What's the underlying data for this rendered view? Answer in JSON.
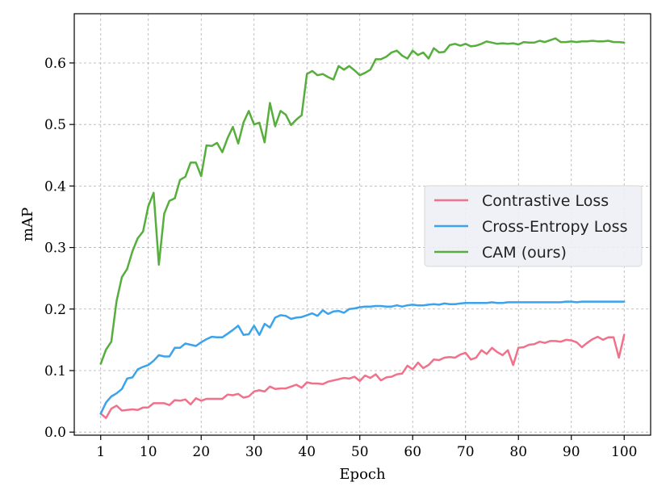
{
  "chart_data": {
    "type": "line",
    "xlabel": "Epoch",
    "ylabel": "mAP",
    "xlim": [
      -4,
      105
    ],
    "ylim": [
      -0.005,
      0.68
    ],
    "xticks": [
      1,
      10,
      20,
      30,
      40,
      50,
      60,
      70,
      80,
      90,
      100
    ],
    "yticks": [
      0.0,
      0.1,
      0.2,
      0.3,
      0.4,
      0.5,
      0.6
    ],
    "ytick_labels": [
      "0.0",
      "0.1",
      "0.2",
      "0.3",
      "0.4",
      "0.5",
      "0.6"
    ],
    "grid": true,
    "legend_position": "center-right",
    "series": [
      {
        "name": "Contrastive Loss",
        "color": "#f07189",
        "x": [
          1,
          2,
          3,
          4,
          5,
          6,
          7,
          8,
          9,
          10,
          11,
          12,
          13,
          14,
          15,
          16,
          17,
          18,
          19,
          20,
          21,
          22,
          23,
          24,
          25,
          26,
          27,
          28,
          29,
          30,
          31,
          32,
          33,
          34,
          35,
          36,
          37,
          38,
          39,
          40,
          41,
          42,
          43,
          44,
          45,
          46,
          47,
          48,
          49,
          50,
          51,
          52,
          53,
          54,
          55,
          56,
          57,
          58,
          59,
          60,
          61,
          62,
          63,
          64,
          65,
          66,
          67,
          68,
          69,
          70,
          71,
          72,
          73,
          74,
          75,
          76,
          77,
          78,
          79,
          80,
          81,
          82,
          83,
          84,
          85,
          86,
          87,
          88,
          89,
          90,
          91,
          92,
          93,
          94,
          95,
          96,
          97,
          98,
          99,
          100
        ],
        "values": [
          0.03,
          0.023,
          0.038,
          0.043,
          0.035,
          0.036,
          0.037,
          0.036,
          0.04,
          0.04,
          0.047,
          0.047,
          0.047,
          0.044,
          0.052,
          0.051,
          0.053,
          0.045,
          0.055,
          0.051,
          0.054,
          0.054,
          0.054,
          0.054,
          0.061,
          0.06,
          0.062,
          0.056,
          0.058,
          0.066,
          0.068,
          0.066,
          0.074,
          0.07,
          0.071,
          0.071,
          0.074,
          0.077,
          0.072,
          0.081,
          0.079,
          0.079,
          0.078,
          0.082,
          0.084,
          0.086,
          0.088,
          0.087,
          0.09,
          0.083,
          0.092,
          0.088,
          0.094,
          0.084,
          0.089,
          0.09,
          0.094,
          0.095,
          0.108,
          0.102,
          0.113,
          0.104,
          0.109,
          0.118,
          0.117,
          0.121,
          0.122,
          0.121,
          0.126,
          0.129,
          0.118,
          0.121,
          0.133,
          0.127,
          0.137,
          0.13,
          0.125,
          0.133,
          0.109,
          0.137,
          0.138,
          0.142,
          0.143,
          0.147,
          0.145,
          0.148,
          0.148,
          0.147,
          0.15,
          0.149,
          0.146,
          0.138,
          0.145,
          0.151,
          0.155,
          0.15,
          0.154,
          0.154,
          0.121,
          0.158
        ]
      },
      {
        "name": "Cross-Entropy Loss",
        "color": "#3ba3ec",
        "x": [
          1,
          2,
          3,
          4,
          5,
          6,
          7,
          8,
          9,
          10,
          11,
          12,
          13,
          14,
          15,
          16,
          17,
          18,
          19,
          20,
          21,
          22,
          23,
          24,
          25,
          26,
          27,
          28,
          29,
          30,
          31,
          32,
          33,
          34,
          35,
          36,
          37,
          38,
          39,
          40,
          41,
          42,
          43,
          44,
          45,
          46,
          47,
          48,
          49,
          50,
          51,
          52,
          53,
          54,
          55,
          56,
          57,
          58,
          59,
          60,
          61,
          62,
          63,
          64,
          65,
          66,
          67,
          68,
          69,
          70,
          71,
          72,
          73,
          74,
          75,
          76,
          77,
          78,
          79,
          80,
          81,
          82,
          83,
          84,
          85,
          86,
          87,
          88,
          89,
          90,
          91,
          92,
          93,
          94,
          95,
          96,
          97,
          98,
          99,
          100
        ],
        "values": [
          0.03,
          0.048,
          0.058,
          0.063,
          0.07,
          0.087,
          0.089,
          0.102,
          0.106,
          0.109,
          0.116,
          0.125,
          0.123,
          0.123,
          0.137,
          0.137,
          0.144,
          0.142,
          0.14,
          0.146,
          0.151,
          0.155,
          0.154,
          0.154,
          0.16,
          0.166,
          0.173,
          0.158,
          0.159,
          0.173,
          0.158,
          0.176,
          0.17,
          0.186,
          0.19,
          0.189,
          0.184,
          0.186,
          0.187,
          0.19,
          0.193,
          0.189,
          0.198,
          0.192,
          0.196,
          0.197,
          0.194,
          0.2,
          0.201,
          0.203,
          0.204,
          0.204,
          0.205,
          0.205,
          0.204,
          0.204,
          0.206,
          0.204,
          0.206,
          0.207,
          0.206,
          0.206,
          0.207,
          0.208,
          0.207,
          0.209,
          0.208,
          0.208,
          0.209,
          0.21,
          0.21,
          0.21,
          0.21,
          0.21,
          0.211,
          0.21,
          0.21,
          0.211,
          0.211,
          0.211,
          0.211,
          0.211,
          0.211,
          0.211,
          0.211,
          0.211,
          0.211,
          0.211,
          0.212,
          0.212,
          0.211,
          0.212,
          0.212,
          0.212,
          0.212,
          0.212,
          0.212,
          0.212,
          0.212,
          0.212
        ]
      },
      {
        "name": "CAM (ours)",
        "color": "#56ae3c",
        "x": [
          1,
          2,
          3,
          4,
          5,
          6,
          7,
          8,
          9,
          10,
          11,
          12,
          13,
          14,
          15,
          16,
          17,
          18,
          19,
          20,
          21,
          22,
          23,
          24,
          25,
          26,
          27,
          28,
          29,
          30,
          31,
          32,
          33,
          34,
          35,
          36,
          37,
          38,
          39,
          40,
          41,
          42,
          43,
          44,
          45,
          46,
          47,
          48,
          49,
          50,
          51,
          52,
          53,
          54,
          55,
          56,
          57,
          58,
          59,
          60,
          61,
          62,
          63,
          64,
          65,
          66,
          67,
          68,
          69,
          70,
          71,
          72,
          73,
          74,
          75,
          76,
          77,
          78,
          79,
          80,
          81,
          82,
          83,
          84,
          85,
          86,
          87,
          88,
          89,
          90,
          91,
          92,
          93,
          94,
          95,
          96,
          97,
          98,
          99,
          100
        ],
        "values": [
          0.111,
          0.134,
          0.147,
          0.213,
          0.252,
          0.265,
          0.294,
          0.315,
          0.326,
          0.367,
          0.389,
          0.272,
          0.355,
          0.376,
          0.38,
          0.41,
          0.415,
          0.438,
          0.438,
          0.416,
          0.466,
          0.465,
          0.47,
          0.455,
          0.478,
          0.496,
          0.469,
          0.503,
          0.522,
          0.5,
          0.503,
          0.471,
          0.535,
          0.497,
          0.522,
          0.516,
          0.499,
          0.508,
          0.515,
          0.582,
          0.587,
          0.58,
          0.582,
          0.577,
          0.573,
          0.595,
          0.589,
          0.595,
          0.588,
          0.58,
          0.584,
          0.589,
          0.606,
          0.606,
          0.61,
          0.617,
          0.62,
          0.612,
          0.607,
          0.62,
          0.613,
          0.617,
          0.607,
          0.624,
          0.617,
          0.618,
          0.629,
          0.631,
          0.628,
          0.631,
          0.627,
          0.628,
          0.631,
          0.635,
          0.633,
          0.631,
          0.632,
          0.631,
          0.632,
          0.63,
          0.634,
          0.633,
          0.633,
          0.636,
          0.634,
          0.637,
          0.64,
          0.634,
          0.634,
          0.635,
          0.634,
          0.635,
          0.635,
          0.636,
          0.635,
          0.635,
          0.636,
          0.634,
          0.634,
          0.633
        ]
      }
    ]
  }
}
